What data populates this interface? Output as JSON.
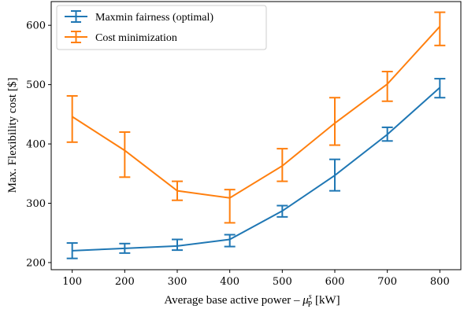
{
  "chart_data": {
    "type": "line",
    "x": [
      100,
      200,
      300,
      400,
      500,
      600,
      700,
      800
    ],
    "xticks": [
      "100",
      "200",
      "300",
      "400",
      "500",
      "600",
      "700",
      "800"
    ],
    "yticks": [
      "200",
      "300",
      "400",
      "500",
      "600"
    ],
    "xlim": [
      60,
      840
    ],
    "ylim": [
      188,
      640
    ],
    "xlabel": "Average base active power – ",
    "xlabel_math": "μ",
    "xlabel_sup": "s",
    "xlabel_sub": "P",
    "xlabel_unit": " [kW]",
    "ylabel": "Max. Flexibility cost [$]",
    "grid": false,
    "legend_position": "top-left",
    "series": [
      {
        "name": "Maxmin fairness (optimal)",
        "color": "#1f77b4",
        "values": [
          220,
          224,
          228,
          239,
          287,
          347,
          416,
          495
        ],
        "err_low": [
          13,
          8,
          7,
          12,
          10,
          26,
          11,
          17
        ],
        "err_high": [
          13,
          8,
          11,
          8,
          9,
          27,
          12,
          15
        ]
      },
      {
        "name": "Cost minimization",
        "color": "#ff7f0e",
        "values": [
          446,
          389,
          321,
          309,
          363,
          435,
          501,
          598
        ],
        "err_low": [
          43,
          45,
          16,
          42,
          26,
          37,
          29,
          32
        ],
        "err_high": [
          35,
          31,
          16,
          14,
          29,
          43,
          21,
          24
        ]
      }
    ]
  }
}
